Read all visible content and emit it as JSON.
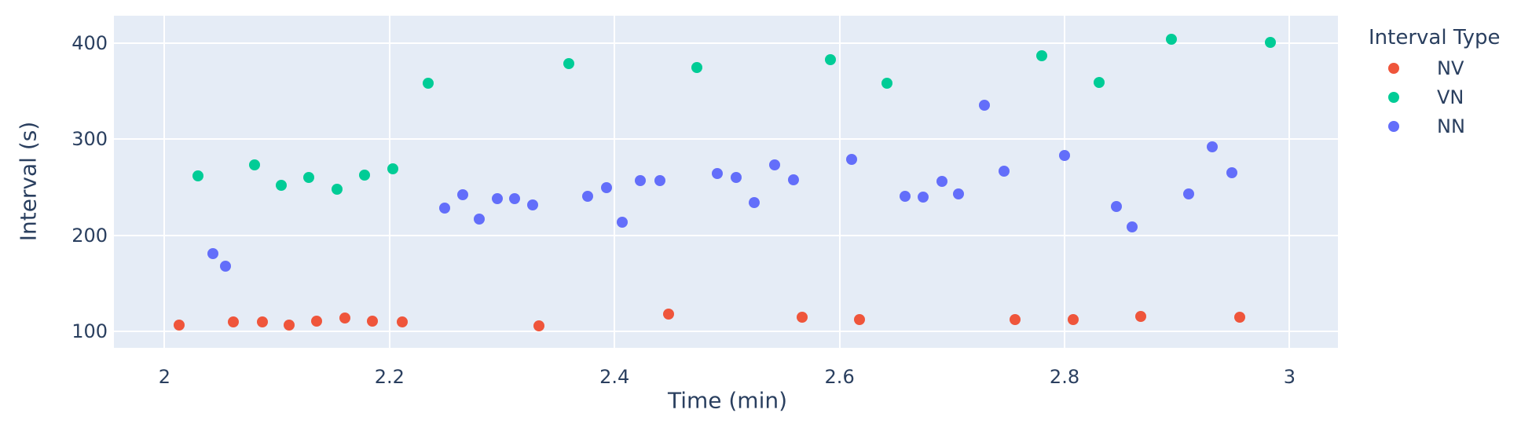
{
  "chart_data": {
    "type": "scatter",
    "title": "",
    "xlabel": "Time (min)",
    "ylabel": "Interval (s)",
    "legend_title": "Interval Type",
    "legend_position": "top-right-outside",
    "grid": true,
    "x_range": [
      1.955,
      3.043
    ],
    "y_range": [
      83,
      428.5
    ],
    "x_ticks": {
      "values": [
        2,
        2.2,
        2.4,
        2.6,
        2.8,
        3
      ],
      "labels": [
        "2",
        "2.2",
        "2.4",
        "2.6",
        "2.8",
        "3"
      ]
    },
    "y_ticks": {
      "values": [
        100,
        200,
        300,
        400
      ],
      "labels": [
        "100",
        "200",
        "300",
        "400"
      ]
    },
    "colors": {
      "plot_bg": "#E5ECF6",
      "grid": "#FFFFFF",
      "text": "#2A3F5F",
      "page_bg": "#FFFFFF"
    },
    "marker_size_px": 14,
    "series": [
      {
        "name": "NV",
        "color": "#EF553B",
        "points": [
          [
            2.013,
            107
          ],
          [
            2.061,
            110
          ],
          [
            2.087,
            110
          ],
          [
            2.111,
            107
          ],
          [
            2.135,
            111
          ],
          [
            2.16,
            114
          ],
          [
            2.185,
            111
          ],
          [
            2.211,
            110
          ],
          [
            2.333,
            106
          ],
          [
            2.448,
            118
          ],
          [
            2.567,
            115
          ],
          [
            2.618,
            112
          ],
          [
            2.756,
            112
          ],
          [
            2.808,
            112
          ],
          [
            2.868,
            116
          ],
          [
            2.956,
            115
          ]
        ]
      },
      {
        "name": "VN",
        "color": "#00CC96",
        "points": [
          [
            2.03,
            262
          ],
          [
            2.08,
            273
          ],
          [
            2.104,
            252
          ],
          [
            2.128,
            260
          ],
          [
            2.153,
            248
          ],
          [
            2.178,
            263
          ],
          [
            2.203,
            269
          ],
          [
            2.234,
            358
          ],
          [
            2.359,
            379
          ],
          [
            2.473,
            375
          ],
          [
            2.592,
            383
          ],
          [
            2.642,
            358
          ],
          [
            2.78,
            387
          ],
          [
            2.831,
            359
          ],
          [
            2.895,
            404
          ],
          [
            2.983,
            401
          ]
        ]
      },
      {
        "name": "NN",
        "color": "#636EFA",
        "points": [
          [
            2.043,
            181
          ],
          [
            2.054,
            168
          ],
          [
            2.249,
            228
          ],
          [
            2.265,
            242
          ],
          [
            2.28,
            217
          ],
          [
            2.296,
            238
          ],
          [
            2.311,
            238
          ],
          [
            2.327,
            232
          ],
          [
            2.376,
            241
          ],
          [
            2.393,
            250
          ],
          [
            2.407,
            214
          ],
          [
            2.423,
            257
          ],
          [
            2.44,
            257
          ],
          [
            2.491,
            264
          ],
          [
            2.508,
            260
          ],
          [
            2.524,
            234
          ],
          [
            2.542,
            273
          ],
          [
            2.559,
            258
          ],
          [
            2.611,
            279
          ],
          [
            2.658,
            241
          ],
          [
            2.674,
            240
          ],
          [
            2.691,
            256
          ],
          [
            2.706,
            243
          ],
          [
            2.729,
            335
          ],
          [
            2.746,
            267
          ],
          [
            2.8,
            283
          ],
          [
            2.846,
            230
          ],
          [
            2.86,
            209
          ],
          [
            2.91,
            243
          ],
          [
            2.931,
            292
          ],
          [
            2.949,
            265
          ]
        ]
      }
    ]
  }
}
